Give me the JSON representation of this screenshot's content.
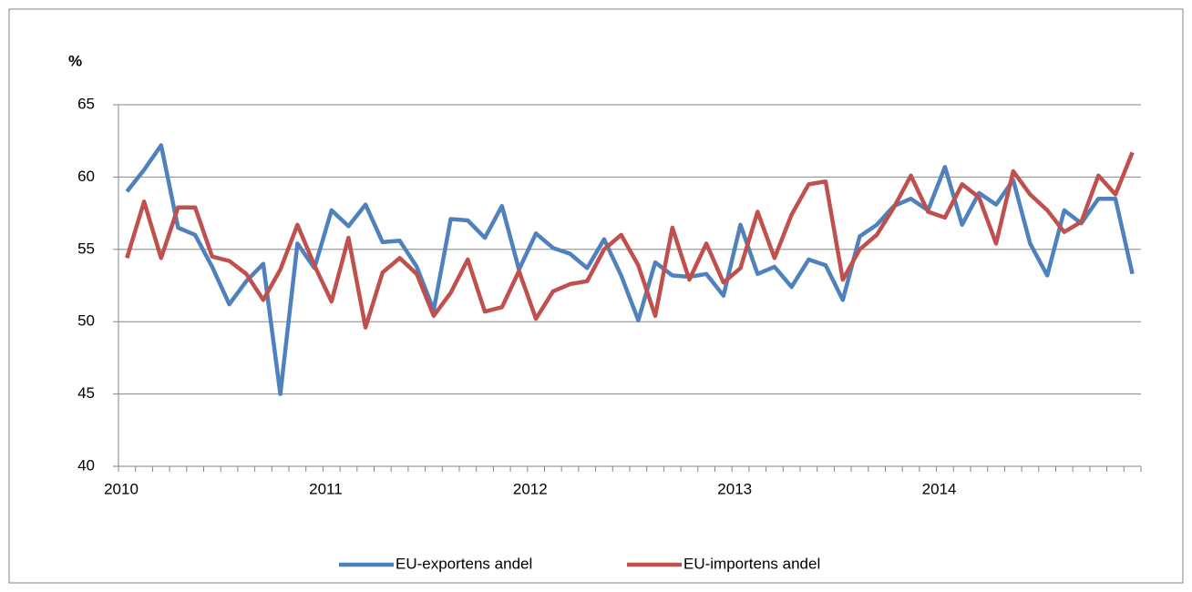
{
  "chart_data": {
    "type": "line",
    "y_label": "%",
    "categories": [
      "2010",
      null,
      null,
      null,
      null,
      null,
      null,
      null,
      null,
      null,
      null,
      null,
      "2011",
      null,
      null,
      null,
      null,
      null,
      null,
      null,
      null,
      null,
      null,
      null,
      "2012",
      null,
      null,
      null,
      null,
      null,
      null,
      null,
      null,
      null,
      null,
      null,
      "2013",
      null,
      null,
      null,
      null,
      null,
      null,
      null,
      null,
      null,
      null,
      null,
      "2014",
      null,
      null,
      null,
      null,
      null,
      null,
      null,
      null,
      null,
      null,
      null
    ],
    "series": [
      {
        "name": "EU-exportens andel",
        "color": "#4f81bd",
        "values": [
          59.0,
          60.5,
          62.2,
          56.5,
          56.0,
          53.8,
          51.2,
          52.8,
          54.0,
          45.0,
          55.4,
          53.7,
          57.7,
          56.6,
          58.1,
          55.5,
          55.6,
          53.8,
          50.8,
          57.1,
          57.0,
          55.8,
          58.0,
          53.6,
          56.1,
          55.1,
          54.7,
          53.7,
          55.7,
          53.2,
          50.1,
          54.1,
          53.2,
          53.1,
          53.3,
          51.8,
          56.7,
          53.3,
          53.8,
          52.4,
          54.3,
          53.9,
          51.5,
          55.9,
          56.7,
          58.0,
          58.5,
          57.7,
          60.7,
          56.7,
          58.9,
          58.1,
          59.8,
          55.4,
          53.2,
          57.7,
          56.8,
          58.5,
          58.5,
          53.3
        ]
      },
      {
        "name": "EU-importens andel",
        "color": "#c0504d",
        "values": [
          54.4,
          58.3,
          54.4,
          57.9,
          57.9,
          54.5,
          54.2,
          53.3,
          51.5,
          53.6,
          56.7,
          53.9,
          51.4,
          55.8,
          49.6,
          53.4,
          54.4,
          53.3,
          50.4,
          52.0,
          54.3,
          50.7,
          51.0,
          53.5,
          50.2,
          52.1,
          52.6,
          52.8,
          55.0,
          56.0,
          53.9,
          50.4,
          56.5,
          52.9,
          55.4,
          52.7,
          53.7,
          57.6,
          54.4,
          57.4,
          59.5,
          59.7,
          52.9,
          55.0,
          56.0,
          57.9,
          60.1,
          57.6,
          57.2,
          59.5,
          58.6,
          55.4,
          60.4,
          58.8,
          57.7,
          56.2,
          56.9,
          60.1,
          58.8,
          61.7
        ]
      }
    ],
    "ylim": [
      40,
      65
    ],
    "yticks": [
      40,
      45,
      50,
      55,
      60,
      65
    ],
    "grid": true,
    "legend": "bottom"
  }
}
